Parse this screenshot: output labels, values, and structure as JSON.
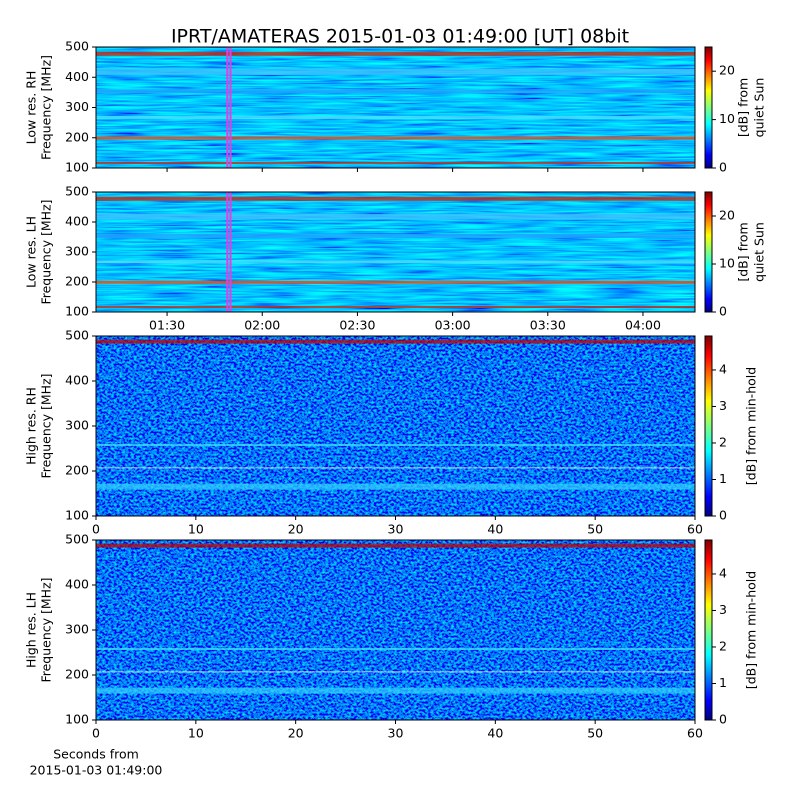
{
  "title": "IPRT/AMATERAS 2015-01-03 01:49:00 [UT]   08bit",
  "chart_data": [
    {
      "type": "heatmap",
      "ylabel": [
        "Low res. RH",
        "Frequency [MHz]"
      ],
      "ylim": [
        100,
        500
      ],
      "yticks": [
        100,
        200,
        300,
        400,
        500
      ],
      "xlim": [
        67.6,
        256.4
      ],
      "xticks": [
        90,
        120,
        150,
        180,
        210,
        240
      ],
      "span": [
        109,
        110
      ],
      "colorbar": {
        "lim": [
          0,
          25
        ],
        "ticks": [
          0,
          10,
          20
        ],
        "label": [
          "[dB] from",
          "quiet Sun"
        ]
      }
    },
    {
      "type": "heatmap",
      "ylabel": [
        "Low res. LH",
        "Frequency [MHz]"
      ],
      "ylim": [
        100,
        500
      ],
      "yticks": [
        100,
        200,
        300,
        400,
        500
      ],
      "xlim": [
        67.6,
        256.4
      ],
      "xticks": [
        {
          "value": 90,
          "label": "01:30"
        },
        {
          "value": 120,
          "label": "02:00"
        },
        {
          "value": 150,
          "label": "02:30"
        },
        {
          "value": 180,
          "label": "03:00"
        },
        {
          "value": 210,
          "label": "03:30"
        },
        {
          "value": 240,
          "label": "04:00"
        }
      ],
      "span": [
        109,
        110
      ],
      "colorbar": {
        "lim": [
          0,
          25
        ],
        "ticks": [
          0,
          10,
          20
        ],
        "label": [
          "[dB] from",
          "quiet Sun"
        ]
      }
    },
    {
      "type": "heatmap",
      "ylabel": [
        "High res. RH",
        "Frequency [MHz]"
      ],
      "ylim": [
        100,
        500
      ],
      "yticks": [
        100,
        200,
        300,
        400,
        500
      ],
      "xlim": [
        0,
        60
      ],
      "xticks": [
        0,
        10,
        20,
        30,
        40,
        50,
        60
      ],
      "colorbar": {
        "lim": [
          0,
          4.93
        ],
        "ticks": [
          0,
          1,
          2,
          3,
          4
        ],
        "label": [
          "[dB] from min-hold"
        ]
      }
    },
    {
      "type": "heatmap",
      "ylabel": [
        "High res. LH",
        "Frequency [MHz]"
      ],
      "ylim": [
        100,
        500
      ],
      "yticks": [
        100,
        200,
        300,
        400,
        500
      ],
      "xlim": [
        0,
        60
      ],
      "xticks": [
        0,
        10,
        20,
        30,
        40,
        50,
        60
      ],
      "xlabel": [
        "Seconds from",
        "2015-01-03 01:49:00"
      ],
      "colorbar": {
        "lim": [
          0,
          4.93
        ],
        "ticks": [
          0,
          1,
          2,
          3,
          4
        ],
        "label": [
          "[dB] from min-hold"
        ]
      }
    }
  ]
}
